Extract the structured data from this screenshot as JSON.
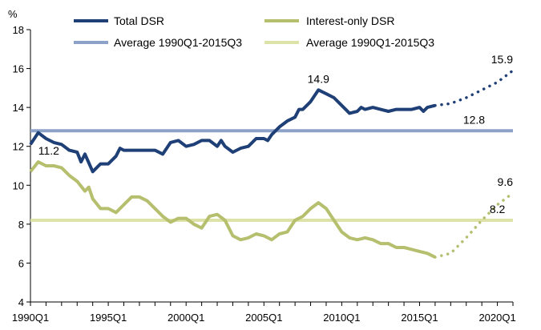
{
  "chart_data": {
    "type": "line",
    "ylabel": "%",
    "ylim": [
      4,
      18
    ],
    "yticks": [
      4,
      6,
      8,
      10,
      12,
      14,
      16,
      18
    ],
    "xlim": [
      "1990Q1",
      "2021Q1"
    ],
    "xticks": [
      "1990Q1",
      "1995Q1",
      "2000Q1",
      "2005Q1",
      "2010Q1",
      "2015Q1",
      "2020Q1"
    ],
    "grid": false,
    "legend_position": "top",
    "legend": [
      "Total DSR",
      "Average 1990Q1-2015Q3",
      "Interest-only DSR",
      "Average 1990Q1-2015Q3"
    ],
    "series": [
      {
        "name": "Total DSR",
        "color": "#1f3f77",
        "style": "solid",
        "points": [
          [
            "1990Q1",
            12.1
          ],
          [
            "1990Q3",
            12.7
          ],
          [
            "1991Q1",
            12.4
          ],
          [
            "1991Q3",
            12.2
          ],
          [
            "1992Q1",
            12.1
          ],
          [
            "1992Q3",
            11.8
          ],
          [
            "1993Q1",
            11.7
          ],
          [
            "1993Q2",
            11.2
          ],
          [
            "1993Q3",
            11.6
          ],
          [
            "1994Q1",
            10.7
          ],
          [
            "1994Q3",
            11.1
          ],
          [
            "1995Q1",
            11.1
          ],
          [
            "1995Q3",
            11.5
          ],
          [
            "1995Q4",
            11.9
          ],
          [
            "1996Q1",
            11.8
          ],
          [
            "1996Q3",
            11.8
          ],
          [
            "1997Q1",
            11.8
          ],
          [
            "1997Q3",
            11.8
          ],
          [
            "1998Q1",
            11.8
          ],
          [
            "1998Q3",
            11.6
          ],
          [
            "1999Q1",
            12.2
          ],
          [
            "1999Q3",
            12.3
          ],
          [
            "2000Q1",
            12.0
          ],
          [
            "2000Q3",
            12.1
          ],
          [
            "2001Q1",
            12.3
          ],
          [
            "2001Q3",
            12.3
          ],
          [
            "2002Q1",
            12.0
          ],
          [
            "2002Q2",
            12.3
          ],
          [
            "2002Q3",
            12.0
          ],
          [
            "2003Q1",
            11.7
          ],
          [
            "2003Q3",
            11.9
          ],
          [
            "2004Q1",
            12.0
          ],
          [
            "2004Q3",
            12.4
          ],
          [
            "2005Q1",
            12.4
          ],
          [
            "2005Q2",
            12.3
          ],
          [
            "2005Q3",
            12.6
          ],
          [
            "2006Q1",
            13.0
          ],
          [
            "2006Q3",
            13.3
          ],
          [
            "2007Q1",
            13.5
          ],
          [
            "2007Q2",
            13.9
          ],
          [
            "2007Q3",
            13.9
          ],
          [
            "2008Q1",
            14.3
          ],
          [
            "2008Q3",
            14.9
          ],
          [
            "2009Q1",
            14.7
          ],
          [
            "2009Q3",
            14.5
          ],
          [
            "2010Q1",
            14.1
          ],
          [
            "2010Q3",
            13.7
          ],
          [
            "2011Q1",
            13.8
          ],
          [
            "2011Q2",
            14.0
          ],
          [
            "2011Q3",
            13.9
          ],
          [
            "2012Q1",
            14.0
          ],
          [
            "2012Q3",
            13.9
          ],
          [
            "2013Q1",
            13.8
          ],
          [
            "2013Q3",
            13.9
          ],
          [
            "2014Q1",
            13.9
          ],
          [
            "2014Q3",
            13.9
          ],
          [
            "2015Q1",
            14.0
          ],
          [
            "2015Q2",
            13.8
          ],
          [
            "2015Q3",
            14.0
          ],
          [
            "2016Q1",
            14.1
          ]
        ]
      },
      {
        "name": "Total DSR forecast",
        "color": "#1f3f77",
        "style": "dotted",
        "points": [
          [
            "2016Q1",
            14.1
          ],
          [
            "2017Q1",
            14.2
          ],
          [
            "2018Q1",
            14.5
          ],
          [
            "2019Q1",
            14.9
          ],
          [
            "2020Q1",
            15.3
          ],
          [
            "2021Q1",
            15.9
          ]
        ]
      },
      {
        "name": "Interest-only DSR",
        "color": "#b5bf6e",
        "style": "solid",
        "points": [
          [
            "1990Q1",
            10.7
          ],
          [
            "1990Q3",
            11.2
          ],
          [
            "1991Q1",
            11.0
          ],
          [
            "1991Q3",
            11.0
          ],
          [
            "1992Q1",
            10.9
          ],
          [
            "1992Q3",
            10.5
          ],
          [
            "1993Q1",
            10.2
          ],
          [
            "1993Q3",
            9.7
          ],
          [
            "1993Q4",
            9.9
          ],
          [
            "1994Q1",
            9.3
          ],
          [
            "1994Q3",
            8.8
          ],
          [
            "1995Q1",
            8.8
          ],
          [
            "1995Q3",
            8.6
          ],
          [
            "1996Q1",
            9.0
          ],
          [
            "1996Q3",
            9.4
          ],
          [
            "1997Q1",
            9.4
          ],
          [
            "1997Q3",
            9.2
          ],
          [
            "1998Q1",
            8.8
          ],
          [
            "1998Q3",
            8.4
          ],
          [
            "1999Q1",
            8.1
          ],
          [
            "1999Q3",
            8.3
          ],
          [
            "2000Q1",
            8.3
          ],
          [
            "2000Q3",
            8.0
          ],
          [
            "2001Q1",
            7.8
          ],
          [
            "2001Q3",
            8.4
          ],
          [
            "2002Q1",
            8.5
          ],
          [
            "2002Q3",
            8.2
          ],
          [
            "2003Q1",
            7.4
          ],
          [
            "2003Q3",
            7.2
          ],
          [
            "2004Q1",
            7.3
          ],
          [
            "2004Q3",
            7.5
          ],
          [
            "2005Q1",
            7.4
          ],
          [
            "2005Q3",
            7.2
          ],
          [
            "2006Q1",
            7.5
          ],
          [
            "2006Q3",
            7.6
          ],
          [
            "2007Q1",
            8.2
          ],
          [
            "2007Q3",
            8.4
          ],
          [
            "2008Q1",
            8.8
          ],
          [
            "2008Q3",
            9.1
          ],
          [
            "2009Q1",
            8.8
          ],
          [
            "2009Q3",
            8.2
          ],
          [
            "2010Q1",
            7.6
          ],
          [
            "2010Q3",
            7.3
          ],
          [
            "2011Q1",
            7.2
          ],
          [
            "2011Q3",
            7.3
          ],
          [
            "2012Q1",
            7.2
          ],
          [
            "2012Q3",
            7.0
          ],
          [
            "2013Q1",
            7.0
          ],
          [
            "2013Q3",
            6.8
          ],
          [
            "2014Q1",
            6.8
          ],
          [
            "2014Q3",
            6.7
          ],
          [
            "2015Q1",
            6.6
          ],
          [
            "2015Q3",
            6.5
          ],
          [
            "2016Q1",
            6.3
          ]
        ]
      },
      {
        "name": "Interest-only DSR forecast",
        "color": "#b5bf6e",
        "style": "dotted",
        "points": [
          [
            "2016Q1",
            6.3
          ],
          [
            "2017Q1",
            6.5
          ],
          [
            "2018Q1",
            7.3
          ],
          [
            "2019Q1",
            8.2
          ],
          [
            "2020Q1",
            9.0
          ],
          [
            "2021Q1",
            9.6
          ]
        ]
      },
      {
        "name": "Average 1990Q1-2015Q3",
        "color": "#8da2c8",
        "style": "solid",
        "value": 12.8,
        "points": [
          [
            "1990Q1",
            12.8
          ],
          [
            "2021Q1",
            12.8
          ]
        ]
      },
      {
        "name": "Average 1990Q1-2015Q3",
        "color": "#dde2a8",
        "style": "solid",
        "value": 8.2,
        "points": [
          [
            "1990Q1",
            8.2
          ],
          [
            "2021Q1",
            8.2
          ]
        ]
      }
    ],
    "annotations": [
      {
        "text": "11.2",
        "x": "1990Q3",
        "y": 11.2,
        "anchor": "start"
      },
      {
        "text": "14.9",
        "x": "2008Q3",
        "y": 14.9,
        "anchor": "middle"
      },
      {
        "text": "15.9",
        "x": "2021Q1",
        "y": 15.9,
        "anchor": "end"
      },
      {
        "text": "12.8",
        "x": "2018Q3",
        "y": 12.8,
        "anchor": "middle"
      },
      {
        "text": "9.6",
        "x": "2021Q1",
        "y": 9.6,
        "anchor": "end"
      },
      {
        "text": "8.2",
        "x": "2020Q1",
        "y": 8.2,
        "anchor": "middle"
      }
    ]
  }
}
